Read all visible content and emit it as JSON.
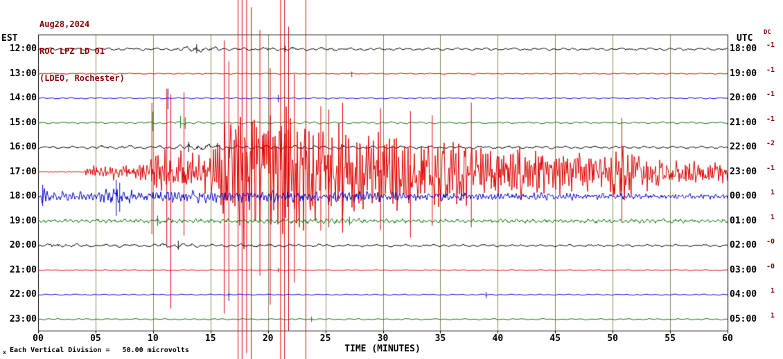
{
  "header": {
    "date": "Aug28,2024",
    "station": "ROC LPZ LD 01",
    "location": "(LDEO, Rochester)"
  },
  "axis": {
    "left": "EST",
    "right": "UTC",
    "dc": "DC",
    "xlabel": "TIME (MINUTES)",
    "footnote_marker": "x",
    "footnote": "Each Vertical Division =   50.00 microvolts",
    "x_ticks": [
      "00",
      "05",
      "10",
      "15",
      "20",
      "25",
      "30",
      "35",
      "40",
      "45",
      "50",
      "55",
      "60"
    ]
  },
  "colors": {
    "title": "#8b0000",
    "grid": "#8a8a5a",
    "frame": "#000000",
    "trace_black": "#000000",
    "trace_red": "#dd0000",
    "trace_blue": "#0000cc",
    "trace_green": "#007700"
  },
  "chart_data": {
    "type": "line",
    "kind": "helicorder-seismogram",
    "title": "ROC LPZ LD 01 (LDEO, Rochester) Aug28,2024",
    "xlabel": "TIME (MINUTES)",
    "x_unit": "minutes",
    "x_range": [
      0,
      60
    ],
    "x_ticks": [
      0,
      5,
      10,
      15,
      20,
      25,
      30,
      35,
      40,
      45,
      50,
      55,
      60
    ],
    "each_vertical_division_microvolts": 50.0,
    "rows": [
      {
        "est": "12:00",
        "utc": "18:00",
        "dc": "-1",
        "color": "#000000",
        "env": [
          [
            0,
            2
          ],
          [
            12,
            2.2
          ],
          [
            12.8,
            4.5
          ],
          [
            15,
            4.5
          ],
          [
            16,
            2.5
          ],
          [
            19,
            2.5
          ],
          [
            20,
            3
          ],
          [
            24,
            2.5
          ],
          [
            30,
            2
          ],
          [
            60,
            2
          ]
        ],
        "tex": {
          "f1": 0.45,
          "f2": 0.16,
          "w1": 0.5,
          "w2": 0.35,
          "w3": 0.45
        },
        "spikes": [
          [
            13.8,
            7,
            6
          ],
          [
            21.5,
            5,
            4
          ]
        ]
      },
      {
        "est": "13:00",
        "utc": "19:00",
        "dc": "-1",
        "color": "#dd0000",
        "env": [
          [
            0,
            0.8
          ],
          [
            60,
            0.8
          ]
        ],
        "tex": {
          "f1": 0.45,
          "f2": 0.16,
          "w1": 0.5,
          "w2": 0.35,
          "w3": 0.45
        },
        "spikes": [
          [
            27.3,
            3,
            5
          ]
        ]
      },
      {
        "est": "14:00",
        "utc": "20:00",
        "dc": "-1",
        "color": "#0000cc",
        "env": [
          [
            0,
            1
          ],
          [
            60,
            1
          ]
        ],
        "tex": {
          "f1": 0.45,
          "f2": 0.16,
          "w1": 0.5,
          "w2": 0.35,
          "w3": 0.45
        },
        "spikes": [
          [
            11.3,
            14,
            16
          ],
          [
            20.9,
            5,
            6
          ]
        ]
      },
      {
        "est": "15:00",
        "utc": "21:00",
        "dc": "-1",
        "color": "#007700",
        "env": [
          [
            0,
            1.4
          ],
          [
            9,
            1.4
          ],
          [
            9.8,
            2.6
          ],
          [
            13,
            2.6
          ],
          [
            14,
            1.8
          ],
          [
            60,
            1.4
          ]
        ],
        "tex": {
          "f1": 0.45,
          "f2": 0.16,
          "w1": 0.5,
          "w2": 0.35,
          "w3": 0.45
        },
        "spikes": [
          [
            10.0,
            16,
            12
          ],
          [
            12.4,
            10,
            8
          ],
          [
            12.8,
            8,
            9
          ]
        ]
      },
      {
        "est": "16:00",
        "utc": "22:00",
        "dc": "-2",
        "color": "#000000",
        "env": [
          [
            0,
            2
          ],
          [
            4,
            2
          ],
          [
            5,
            2.8
          ],
          [
            12,
            2.8
          ],
          [
            12.5,
            5
          ],
          [
            15,
            5
          ],
          [
            16,
            3
          ],
          [
            24,
            3
          ],
          [
            30,
            2.5
          ],
          [
            60,
            2
          ]
        ],
        "tex": {
          "f1": 0.45,
          "f2": 0.16,
          "w1": 0.5,
          "w2": 0.35,
          "w3": 0.45
        },
        "spikes": [
          [
            13.1,
            8,
            7
          ]
        ]
      },
      {
        "est": "17:00",
        "utc": "23:00",
        "dc": "-1",
        "color": "#dd0000",
        "env": [
          [
            0,
            0.9
          ],
          [
            4,
            0.9
          ],
          [
            4.3,
            6
          ],
          [
            5,
            9
          ],
          [
            6,
            11
          ],
          [
            7,
            10
          ],
          [
            8,
            9
          ],
          [
            9,
            12
          ],
          [
            10,
            22
          ],
          [
            11,
            30
          ],
          [
            12,
            26
          ],
          [
            13,
            22
          ],
          [
            14,
            24
          ],
          [
            15,
            30
          ],
          [
            16,
            55
          ],
          [
            17,
            75
          ],
          [
            18,
            85
          ],
          [
            19,
            80
          ],
          [
            20,
            85
          ],
          [
            21,
            82
          ],
          [
            22,
            85
          ],
          [
            23,
            75
          ],
          [
            24,
            65
          ],
          [
            25,
            60
          ],
          [
            26,
            58
          ],
          [
            27,
            62
          ],
          [
            28,
            55
          ],
          [
            29,
            58
          ],
          [
            30,
            52
          ],
          [
            31,
            56
          ],
          [
            32,
            50
          ],
          [
            33,
            52
          ],
          [
            34,
            46
          ],
          [
            35,
            50
          ],
          [
            36,
            44
          ],
          [
            37,
            46
          ],
          [
            38,
            40
          ],
          [
            39,
            36
          ],
          [
            40,
            32
          ],
          [
            41,
            30
          ],
          [
            42,
            32
          ],
          [
            43,
            28
          ],
          [
            44,
            30
          ],
          [
            45,
            25
          ],
          [
            46,
            27
          ],
          [
            47,
            23
          ],
          [
            48,
            25
          ],
          [
            49,
            28
          ],
          [
            50,
            34
          ],
          [
            51,
            38
          ],
          [
            52,
            28
          ],
          [
            53,
            22
          ],
          [
            54,
            18
          ],
          [
            55,
            16
          ],
          [
            56,
            15
          ],
          [
            57,
            14
          ],
          [
            58,
            13
          ],
          [
            59,
            13
          ],
          [
            60,
            12
          ]
        ],
        "tex": {
          "f1": 1.9,
          "f2": 0.8,
          "w1": 0.4,
          "w2": 0.25,
          "w3": 0.85
        },
        "spikes": [
          [
            9.9,
            100,
            90
          ],
          [
            11.2,
            120,
            108
          ],
          [
            11.55,
            112,
            198
          ],
          [
            12.7,
            115,
            92
          ],
          [
            16.2,
            190,
            205
          ],
          [
            16.6,
            160,
            180
          ],
          [
            17.4,
            250,
            275
          ],
          [
            17.75,
            250,
            275
          ],
          [
            18.15,
            250,
            262
          ],
          [
            18.55,
            238,
            275
          ],
          [
            19.3,
            205,
            150
          ],
          [
            20.2,
            150,
            192
          ],
          [
            21.1,
            250,
            275
          ],
          [
            21.45,
            250,
            275
          ],
          [
            21.8,
            210,
            230
          ],
          [
            22.3,
            142,
            160
          ],
          [
            23.3,
            250,
            275
          ],
          [
            24.6,
            95,
            85
          ],
          [
            25.3,
            90,
            80
          ],
          [
            26.5,
            100,
            88
          ],
          [
            29.8,
            92,
            84
          ],
          [
            32.4,
            88,
            95
          ],
          [
            34.3,
            82,
            78
          ],
          [
            37.7,
            100,
            80
          ],
          [
            50.8,
            78,
            70
          ]
        ]
      },
      {
        "est": "18:00",
        "utc": "00:00",
        "dc": "1",
        "color": "#0000cc",
        "env": [
          [
            0,
            13
          ],
          [
            1,
            11
          ],
          [
            2,
            8
          ],
          [
            3,
            6
          ],
          [
            5,
            6
          ],
          [
            6,
            11
          ],
          [
            7,
            13
          ],
          [
            8,
            9
          ],
          [
            9,
            7
          ],
          [
            10,
            8
          ],
          [
            12,
            9
          ],
          [
            16,
            8
          ],
          [
            20,
            8
          ],
          [
            24,
            7
          ],
          [
            28,
            7
          ],
          [
            32,
            6.5
          ],
          [
            36,
            6
          ],
          [
            40,
            5.5
          ],
          [
            44,
            5
          ],
          [
            48,
            4.5
          ],
          [
            52,
            4
          ],
          [
            60,
            4
          ]
        ],
        "tex": {
          "f1": 1.2,
          "f2": 0.5,
          "w1": 0.5,
          "w2": 0.3,
          "w3": 0.6
        },
        "spikes": [
          [
            0.4,
            17,
            14
          ],
          [
            6.8,
            24,
            28
          ],
          [
            7.1,
            20,
            22
          ]
        ]
      },
      {
        "est": "19:00",
        "utc": "01:00",
        "dc": "1",
        "color": "#007700",
        "env": [
          [
            0,
            2.8
          ],
          [
            9,
            2.8
          ],
          [
            10,
            4.5
          ],
          [
            12,
            4.5
          ],
          [
            13,
            3.5
          ],
          [
            18,
            3.2
          ],
          [
            24,
            3.4
          ],
          [
            26,
            4
          ],
          [
            28,
            3.5
          ],
          [
            34,
            3
          ],
          [
            42,
            3
          ],
          [
            46,
            3.3
          ],
          [
            50,
            3
          ],
          [
            54,
            3.3
          ],
          [
            60,
            3
          ]
        ],
        "tex": {
          "f1": 0.8,
          "f2": 0.3,
          "w1": 0.5,
          "w2": 0.3,
          "w3": 0.55
        },
        "spikes": [
          [
            10.4,
            8,
            7
          ],
          [
            27.1,
            6,
            6
          ]
        ]
      },
      {
        "est": "20:00",
        "utc": "02:00",
        "dc": "-0",
        "color": "#000000",
        "env": [
          [
            0,
            2.2
          ],
          [
            1,
            3.5
          ],
          [
            3,
            3.5
          ],
          [
            4,
            2.4
          ],
          [
            10,
            2.4
          ],
          [
            11,
            3.5
          ],
          [
            13,
            4
          ],
          [
            14,
            2.6
          ],
          [
            18,
            2.4
          ],
          [
            24,
            2.2
          ],
          [
            30,
            2
          ],
          [
            60,
            1.8
          ]
        ],
        "tex": {
          "f1": 0.45,
          "f2": 0.16,
          "w1": 0.5,
          "w2": 0.35,
          "w3": 0.45
        },
        "spikes": [
          [
            12.2,
            7,
            6
          ]
        ]
      },
      {
        "est": "21:00",
        "utc": "03:00",
        "dc": "-0",
        "color": "#dd0000",
        "env": [
          [
            0,
            0.8
          ],
          [
            60,
            0.8
          ]
        ],
        "tex": {
          "f1": 0.45,
          "f2": 0.16,
          "w1": 0.5,
          "w2": 0.35,
          "w3": 0.45
        },
        "spikes": [
          [
            20.9,
            3,
            3
          ]
        ]
      },
      {
        "est": "22:00",
        "utc": "04:00",
        "dc": "1",
        "color": "#0000cc",
        "env": [
          [
            0,
            0.9
          ],
          [
            60,
            0.9
          ]
        ],
        "tex": {
          "f1": 0.45,
          "f2": 0.16,
          "w1": 0.5,
          "w2": 0.35,
          "w3": 0.45
        },
        "spikes": [
          [
            16.6,
            3,
            9
          ],
          [
            39.0,
            4,
            5
          ]
        ]
      },
      {
        "est": "23:00",
        "utc": "05:00",
        "dc": "1",
        "color": "#007700",
        "env": [
          [
            0,
            1.1
          ],
          [
            60,
            1.1
          ]
        ],
        "tex": {
          "f1": 0.45,
          "f2": 0.16,
          "w1": 0.5,
          "w2": 0.35,
          "w3": 0.45
        },
        "spikes": [
          [
            23.8,
            4,
            4
          ]
        ]
      }
    ]
  }
}
